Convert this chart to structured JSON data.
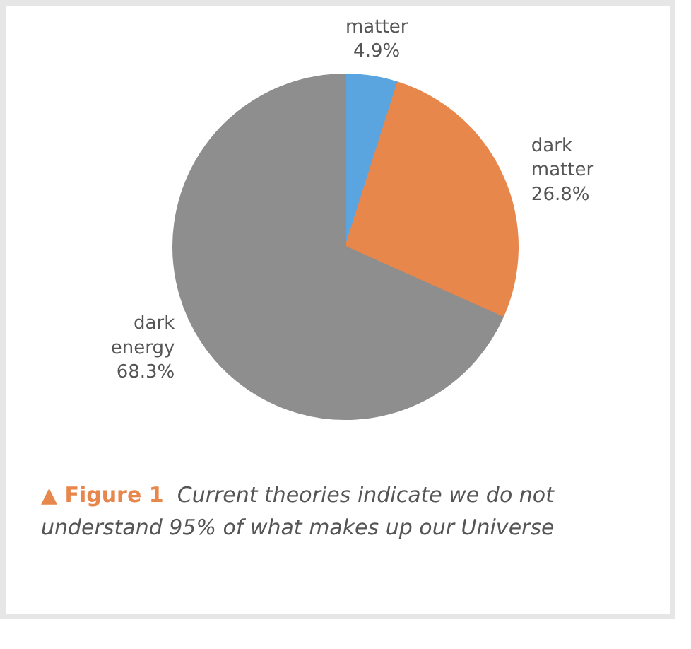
{
  "chart_data": {
    "type": "pie",
    "categories": [
      "matter",
      "dark matter",
      "dark energy"
    ],
    "values": [
      4.9,
      26.8,
      68.3
    ],
    "colors": [
      "#5aa5e0",
      "#e8874c",
      "#8e8e8e"
    ],
    "value_labels": [
      "4.9%",
      "26.8%",
      "68.3%"
    ],
    "legend": false,
    "annotations": [
      "▲ Figure 1",
      "Current theories indicate we do not understand 95% of what makes up our Universe"
    ]
  }
}
